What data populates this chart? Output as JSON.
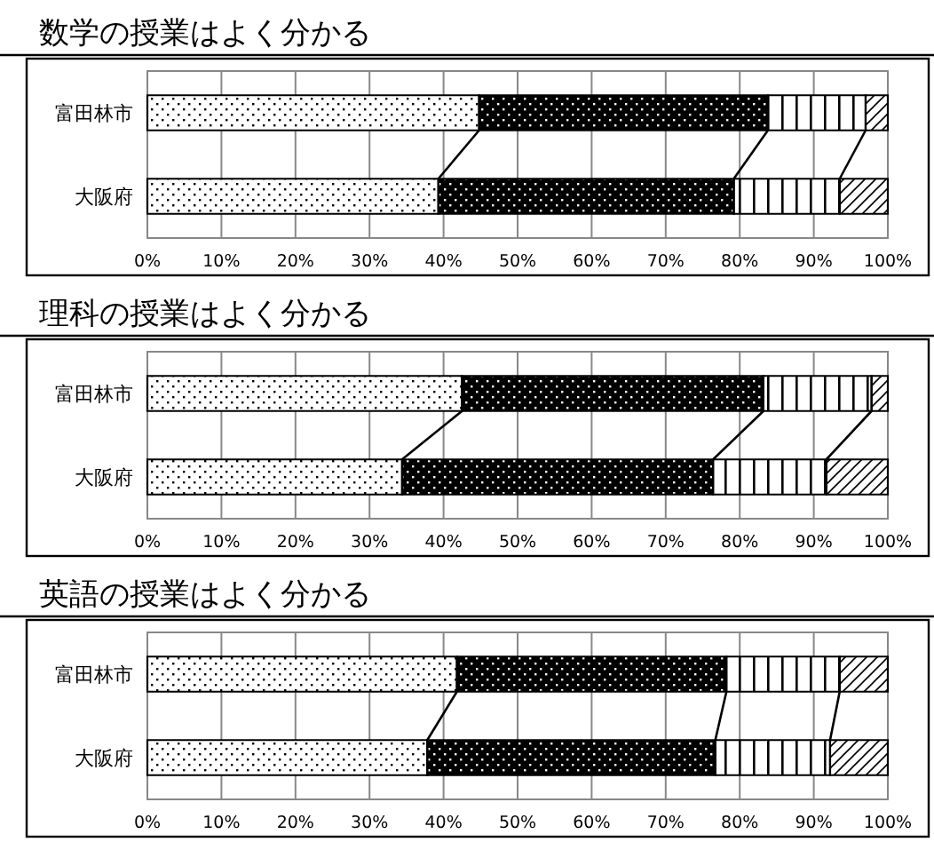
{
  "chart_data": [
    {
      "type": "bar",
      "orientation": "horizontal",
      "stacked": true,
      "title": "数学の授業はよく分かる",
      "categories": [
        "富田林市",
        "大阪府"
      ],
      "series": [
        {
          "color": "#ffffff",
          "values": [
            44.8,
            39.3
          ]
        },
        {
          "color": "#000000",
          "values": [
            39.0,
            39.9
          ]
        },
        {
          "color": "#ffffff",
          "values": [
            13.2,
            14.3
          ]
        },
        {
          "color": "#ffffff",
          "values": [
            3.0,
            6.5
          ]
        }
      ],
      "xlim": [
        0,
        100
      ],
      "xticks": [
        {
          "value": 0,
          "label": "0%"
        },
        {
          "value": 10,
          "label": "10%"
        },
        {
          "value": 20,
          "label": "20%"
        },
        {
          "value": 30,
          "label": "30%"
        },
        {
          "value": 40,
          "label": "40%"
        },
        {
          "value": 50,
          "label": "50%"
        },
        {
          "value": 60,
          "label": "60%"
        },
        {
          "value": 70,
          "label": "70%"
        },
        {
          "value": 80,
          "label": "80%"
        },
        {
          "value": 90,
          "label": "90%"
        },
        {
          "value": 100,
          "label": "100%"
        }
      ],
      "grid": "x"
    },
    {
      "type": "bar",
      "orientation": "horizontal",
      "stacked": true,
      "title": "理科の授業はよく分かる",
      "categories": [
        "富田林市",
        "大阪府"
      ],
      "series": [
        {
          "color": "#ffffff",
          "values": [
            42.5,
            34.4
          ]
        },
        {
          "color": "#000000",
          "values": [
            40.7,
            42.0
          ]
        },
        {
          "color": "#ffffff",
          "values": [
            14.6,
            15.3
          ]
        },
        {
          "color": "#ffffff",
          "values": [
            2.2,
            8.3
          ]
        }
      ],
      "xlim": [
        0,
        100
      ],
      "xticks": [
        {
          "value": 0,
          "label": "0%"
        },
        {
          "value": 10,
          "label": "10%"
        },
        {
          "value": 20,
          "label": "20%"
        },
        {
          "value": 30,
          "label": "30%"
        },
        {
          "value": 40,
          "label": "40%"
        },
        {
          "value": 50,
          "label": "50%"
        },
        {
          "value": 60,
          "label": "60%"
        },
        {
          "value": 70,
          "label": "70%"
        },
        {
          "value": 80,
          "label": "80%"
        },
        {
          "value": 90,
          "label": "90%"
        },
        {
          "value": 100,
          "label": "100%"
        }
      ],
      "grid": "x"
    },
    {
      "type": "bar",
      "orientation": "horizontal",
      "stacked": true,
      "title": "英語の授業はよく分かる",
      "categories": [
        "富田林市",
        "大阪府"
      ],
      "series": [
        {
          "color": "#ffffff",
          "values": [
            41.8,
            37.8
          ]
        },
        {
          "color": "#000000",
          "values": [
            36.4,
            38.9
          ]
        },
        {
          "color": "#ffffff",
          "values": [
            15.3,
            15.5
          ]
        },
        {
          "color": "#ffffff",
          "values": [
            6.5,
            7.8
          ]
        }
      ],
      "xlim": [
        0,
        100
      ],
      "xticks": [
        {
          "value": 0,
          "label": "0%"
        },
        {
          "value": 10,
          "label": "10%"
        },
        {
          "value": 20,
          "label": "20%"
        },
        {
          "value": 30,
          "label": "30%"
        },
        {
          "value": 40,
          "label": "40%"
        },
        {
          "value": 50,
          "label": "50%"
        },
        {
          "value": 60,
          "label": "60%"
        },
        {
          "value": 70,
          "label": "70%"
        },
        {
          "value": 80,
          "label": "80%"
        },
        {
          "value": 90,
          "label": "90%"
        },
        {
          "value": 100,
          "label": "100%"
        }
      ],
      "grid": "x"
    }
  ]
}
